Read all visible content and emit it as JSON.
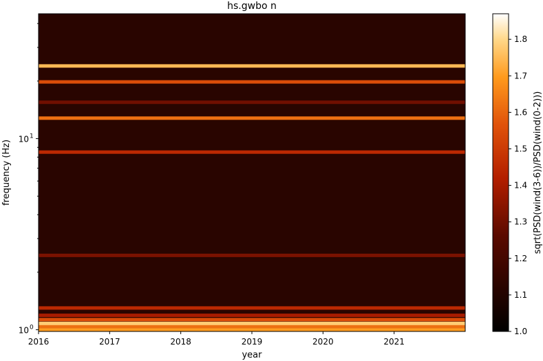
{
  "chart_data": {
    "type": "heatmap",
    "title": "hs.gwbo n",
    "xlabel": "year",
    "ylabel": "frequency (Hz)",
    "colorbar_label": "sqrt(PSD(wind(3-6))/PSD(wind(0-2)))",
    "x_ticks": [
      {
        "value": 2016,
        "label": "2016"
      },
      {
        "value": 2017,
        "label": "2017"
      },
      {
        "value": 2018,
        "label": "2018"
      },
      {
        "value": 2019,
        "label": "2019"
      },
      {
        "value": 2020,
        "label": "2020"
      },
      {
        "value": 2021,
        "label": "2021"
      }
    ],
    "xlim": [
      2016.0,
      2022.0
    ],
    "y_scale": "log",
    "ylim": [
      0.98,
      45
    ],
    "y_tick_labels": [
      {
        "value": 1,
        "label": "10",
        "exp": "0"
      },
      {
        "value": 10,
        "label": "10",
        "exp": "1"
      }
    ],
    "colormap": "gist_heat",
    "clim": [
      1.0,
      1.87
    ],
    "colorbar_ticks": [
      "1.0",
      "1.1",
      "1.2",
      "1.3",
      "1.4",
      "1.5",
      "1.6",
      "1.7",
      "1.8"
    ],
    "colorbar_tick_values": [
      1.0,
      1.1,
      1.2,
      1.3,
      1.4,
      1.5,
      1.6,
      1.7,
      1.8
    ],
    "bands": [
      {
        "freq": 1.0,
        "value": 1.7
      },
      {
        "freq": 1.04,
        "value": 1.62
      },
      {
        "freq": 1.08,
        "value": 1.78
      },
      {
        "freq": 1.13,
        "value": 1.55
      },
      {
        "freq": 1.19,
        "value": 1.4
      },
      {
        "freq": 1.3,
        "value": 1.45
      },
      {
        "freq": 2.45,
        "value": 1.32
      },
      {
        "freq": 8.5,
        "value": 1.45
      },
      {
        "freq": 12.8,
        "value": 1.62
      },
      {
        "freq": 15.5,
        "value": 1.3
      },
      {
        "freq": 19.8,
        "value": 1.55
      },
      {
        "freq": 24.0,
        "value": 1.75
      }
    ],
    "background_value": 1.12,
    "grid": false
  }
}
